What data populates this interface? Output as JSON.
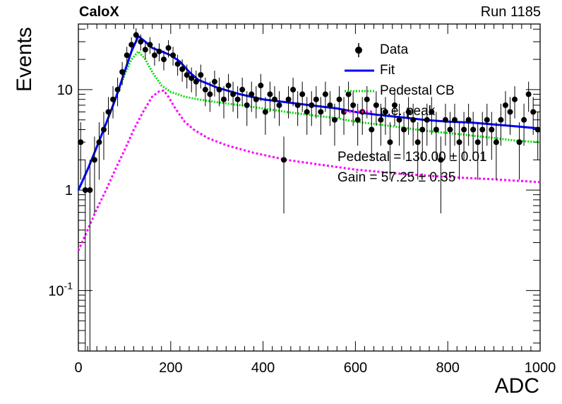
{
  "header": {
    "left_label": "CaloX",
    "right_label": "Run 1185"
  },
  "fit_results": {
    "pedestal": "Pedestal = 130.00 ± 0.01",
    "gain": "Gain = 57.25 ± 0.35"
  },
  "colors": {
    "data": "#000000",
    "fit": "#0000ff",
    "pedestal": "#00dd00",
    "pe_peak": "#ff00ff"
  },
  "chart_data": {
    "type": "scatter",
    "xlabel": "ADC",
    "ylabel": "Events",
    "xlim": [
      0,
      1000
    ],
    "ylim": [
      0.025,
      45
    ],
    "yscale": "log",
    "grid": false,
    "legend_position": "top-right",
    "x_ticks": [
      "0",
      "200",
      "400",
      "600",
      "800",
      "1000"
    ],
    "y_ticks": [
      "10^-1",
      "1",
      "10"
    ],
    "legend": [
      {
        "label": "Data",
        "style": "marker"
      },
      {
        "label": "Fit",
        "style": "solid"
      },
      {
        "label": "Pedestal CB",
        "style": "dotted"
      },
      {
        "label": "p.e. peak",
        "style": "dotted"
      }
    ],
    "data_points": {
      "x": [
        5,
        15,
        25,
        35,
        45,
        55,
        65,
        75,
        85,
        95,
        105,
        115,
        125,
        135,
        145,
        155,
        165,
        175,
        185,
        195,
        205,
        215,
        225,
        235,
        245,
        255,
        265,
        275,
        285,
        295,
        305,
        315,
        325,
        335,
        345,
        355,
        365,
        375,
        385,
        395,
        405,
        415,
        425,
        435,
        445,
        455,
        465,
        475,
        485,
        495,
        505,
        515,
        525,
        535,
        545,
        555,
        565,
        575,
        585,
        595,
        605,
        615,
        625,
        635,
        645,
        655,
        665,
        675,
        685,
        695,
        705,
        715,
        725,
        735,
        745,
        755,
        765,
        775,
        785,
        795,
        805,
        815,
        825,
        835,
        845,
        855,
        865,
        875,
        885,
        895,
        905,
        915,
        925,
        935,
        945,
        955,
        965,
        975,
        985,
        995
      ],
      "y": [
        3,
        1,
        1,
        2,
        3,
        4,
        6,
        8,
        10,
        15,
        22,
        28,
        35,
        30,
        25,
        28,
        22,
        24,
        20,
        26,
        22,
        18,
        16,
        14,
        13,
        12,
        14,
        10,
        9,
        12,
        10,
        8,
        11,
        9,
        8,
        10,
        7,
        9,
        8,
        11,
        6,
        9,
        8,
        7,
        2,
        8,
        10,
        7,
        9,
        6,
        7,
        8,
        6,
        9,
        7,
        5,
        8,
        6,
        9,
        7,
        5,
        6,
        8,
        4,
        7,
        5,
        6,
        3,
        7,
        5,
        4,
        6,
        5,
        3,
        4,
        5,
        6,
        4,
        2,
        5,
        4,
        5,
        3,
        4,
        5,
        4,
        3,
        4,
        5,
        4,
        3,
        5,
        7,
        6,
        8,
        3,
        5,
        9,
        6,
        4
      ]
    },
    "fit_curve": {
      "x": [
        0,
        20,
        40,
        60,
        80,
        100,
        115,
        130,
        145,
        160,
        180,
        200,
        220,
        240,
        260,
        300,
        350,
        400,
        450,
        500,
        560,
        600,
        650,
        700,
        750,
        800,
        850,
        900,
        950,
        1000
      ],
      "y": [
        1.0,
        1.6,
        2.7,
        4.6,
        8,
        15,
        24,
        34,
        30,
        26,
        24,
        22,
        19,
        15,
        12.5,
        10.5,
        9,
        8,
        7.5,
        7,
        6.5,
        6,
        5.6,
        5.3,
        5,
        4.8,
        4.7,
        4.5,
        4.3,
        4.1
      ]
    },
    "pedestal_curve": {
      "x": [
        0,
        20,
        40,
        60,
        80,
        100,
        115,
        130,
        145,
        160,
        180,
        200,
        230,
        260,
        300,
        350,
        400,
        450,
        500,
        560,
        600,
        650,
        700,
        750,
        800,
        850,
        900,
        950,
        1000
      ],
      "y": [
        1.0,
        1.6,
        2.7,
        4.6,
        8,
        14,
        20,
        24,
        20,
        15,
        11,
        9.5,
        8.5,
        8,
        7.5,
        7,
        6.5,
        6,
        5.6,
        5.2,
        4.8,
        4.5,
        4.2,
        3.9,
        3.7,
        3.5,
        3.3,
        3.1,
        3.0
      ]
    },
    "pe_peak_curve": {
      "x": [
        0,
        20,
        40,
        60,
        80,
        100,
        120,
        140,
        160,
        175,
        185,
        195,
        210,
        230,
        250,
        280,
        320,
        380,
        450,
        520,
        600,
        700,
        800,
        900,
        1000
      ],
      "y": [
        0.25,
        0.4,
        0.65,
        1.0,
        1.6,
        2.5,
        4,
        6,
        8.5,
        9.6,
        9.8,
        8.5,
        6.5,
        4.8,
        4,
        3.3,
        2.8,
        2.35,
        2,
        1.8,
        1.6,
        1.45,
        1.35,
        1.28,
        1.2
      ]
    }
  }
}
